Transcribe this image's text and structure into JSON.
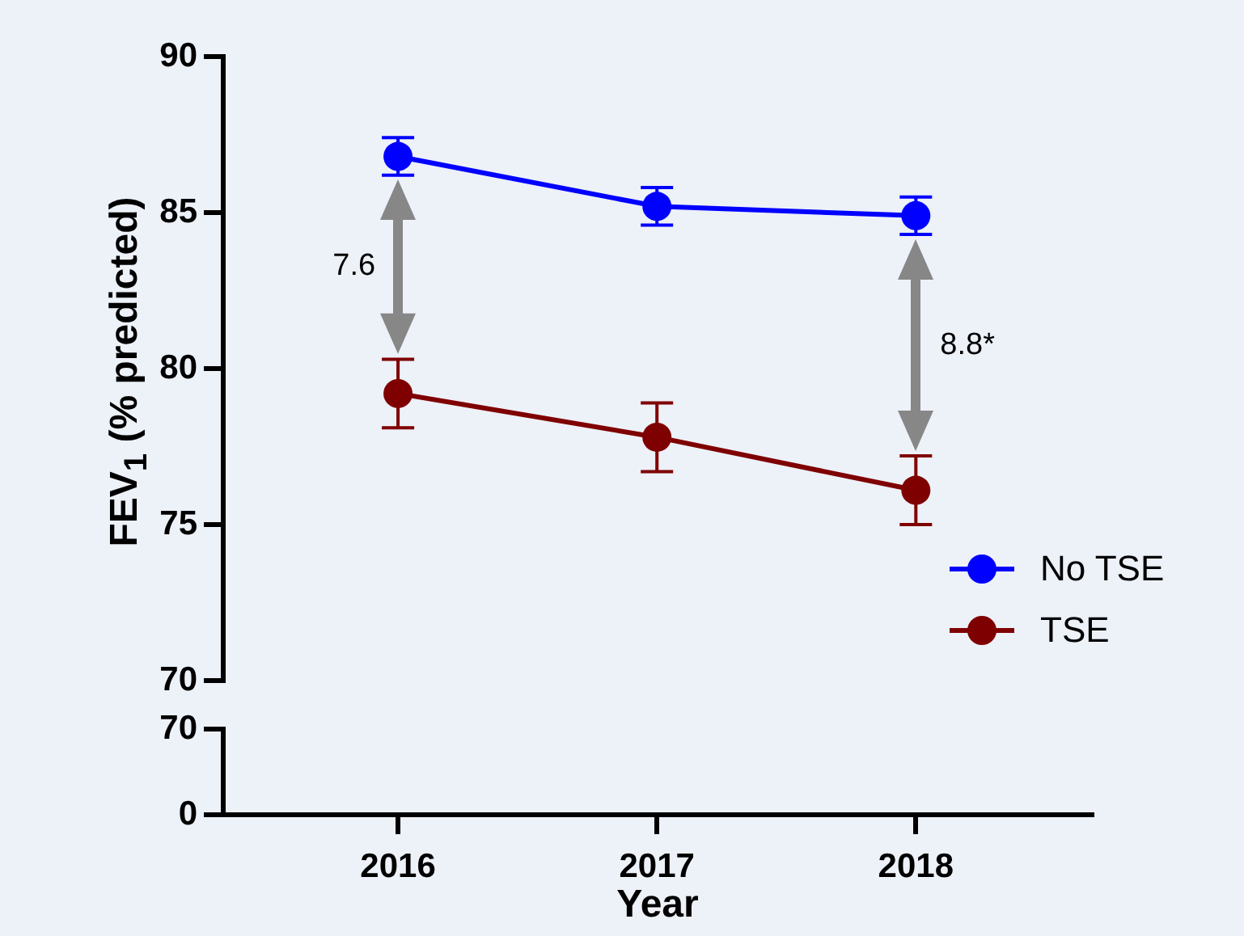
{
  "chart_data": [
    {
      "type": "line",
      "ylabel": "FEV$_{1}$ (% predicted)",
      "categories": [
        "2016",
        "2017",
        "2018"
      ],
      "ylim": [
        70,
        90
      ],
      "yticks": [
        70,
        75,
        80,
        85,
        90
      ],
      "tick_labels": "y",
      "marker": "circle",
      "legend": "bottom right",
      "grid": false,
      "series": [
        {
          "name": "No TSE",
          "color": "#0000ff",
          "values": [
            86.8,
            85.2,
            84.9
          ],
          "errors": [
            0.6,
            0.6,
            0.6
          ]
        },
        {
          "name": "TSE",
          "color": "#7f0000",
          "values": [
            79.2,
            77.8,
            76.1
          ],
          "errors": [
            1.1,
            1.1,
            1.1
          ]
        }
      ],
      "annotations": [
        "7.6",
        "8.8*"
      ]
    },
    {
      "type": "line",
      "xlabel": "Year",
      "categories": [
        "2016",
        "2017",
        "2018"
      ],
      "ylim": [
        0,
        70
      ],
      "yticks": [
        0,
        70
      ],
      "grid": false
    }
  ]
}
